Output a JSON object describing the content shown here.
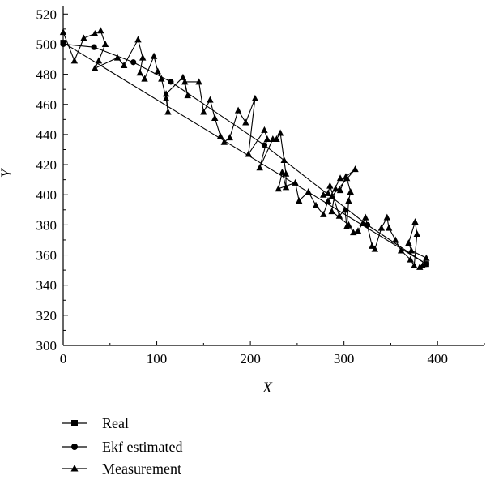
{
  "chart_data": {
    "type": "line",
    "xlabel": "X",
    "ylabel": "Y",
    "xlim": [
      0,
      450
    ],
    "ylim": [
      300,
      525
    ],
    "x_ticks": [
      0,
      100,
      200,
      300,
      400
    ],
    "y_ticks": [
      300,
      320,
      340,
      360,
      380,
      400,
      420,
      440,
      460,
      480,
      500,
      520
    ],
    "grid": false,
    "legend_position": "bottom-left, outside plot",
    "series": [
      {
        "name": "Real",
        "marker": "square",
        "x": [
          0,
          388
        ],
        "y": [
          501,
          354
        ]
      },
      {
        "name": "Ekf estimated",
        "marker": "circle",
        "x": [
          0,
          33,
          75,
          115,
          215,
          325,
          388
        ],
        "y": [
          500,
          498,
          488,
          475,
          433,
          380,
          354
        ]
      },
      {
        "name": "Measurement",
        "marker": "triangle",
        "x": [
          0,
          12,
          22,
          34,
          40,
          45,
          38,
          34,
          58,
          65,
          80,
          85,
          82,
          87,
          97,
          101,
          105,
          110,
          112,
          110,
          128,
          133,
          130,
          145,
          150,
          157,
          162,
          168,
          172,
          178,
          187,
          195,
          205,
          198,
          215,
          218,
          210,
          224,
          228,
          232,
          236,
          238,
          238,
          234,
          230,
          248,
          252,
          262,
          270,
          278,
          283,
          296,
          303,
          307,
          305,
          303,
          301,
          295,
          285,
          283,
          278,
          287,
          312,
          302,
          296,
          291,
          287,
          305,
          310,
          315,
          320,
          323,
          330,
          333,
          340,
          346,
          348,
          355,
          361,
          371,
          375,
          378,
          376,
          369,
          372,
          388,
          384,
          381
        ],
        "y": [
          508,
          489,
          504,
          507,
          509,
          500,
          489,
          484,
          491,
          486,
          503,
          491,
          481,
          477,
          492,
          482,
          477,
          464,
          455,
          467,
          478,
          466,
          475,
          475,
          455,
          463,
          451,
          439,
          435,
          438,
          456,
          448,
          464,
          427,
          443,
          437,
          418,
          437,
          437,
          441,
          423,
          414,
          405,
          415,
          404,
          408,
          396,
          402,
          393,
          387,
          396,
          411,
          411,
          402,
          396,
          379,
          390,
          386,
          406,
          401,
          400,
          399,
          417,
          412,
          403,
          404,
          389,
          380,
          375,
          376,
          381,
          385,
          366,
          364,
          378,
          385,
          378,
          370,
          363,
          357,
          353,
          374,
          382,
          368,
          363,
          358,
          353,
          352
        ]
      }
    ]
  }
}
